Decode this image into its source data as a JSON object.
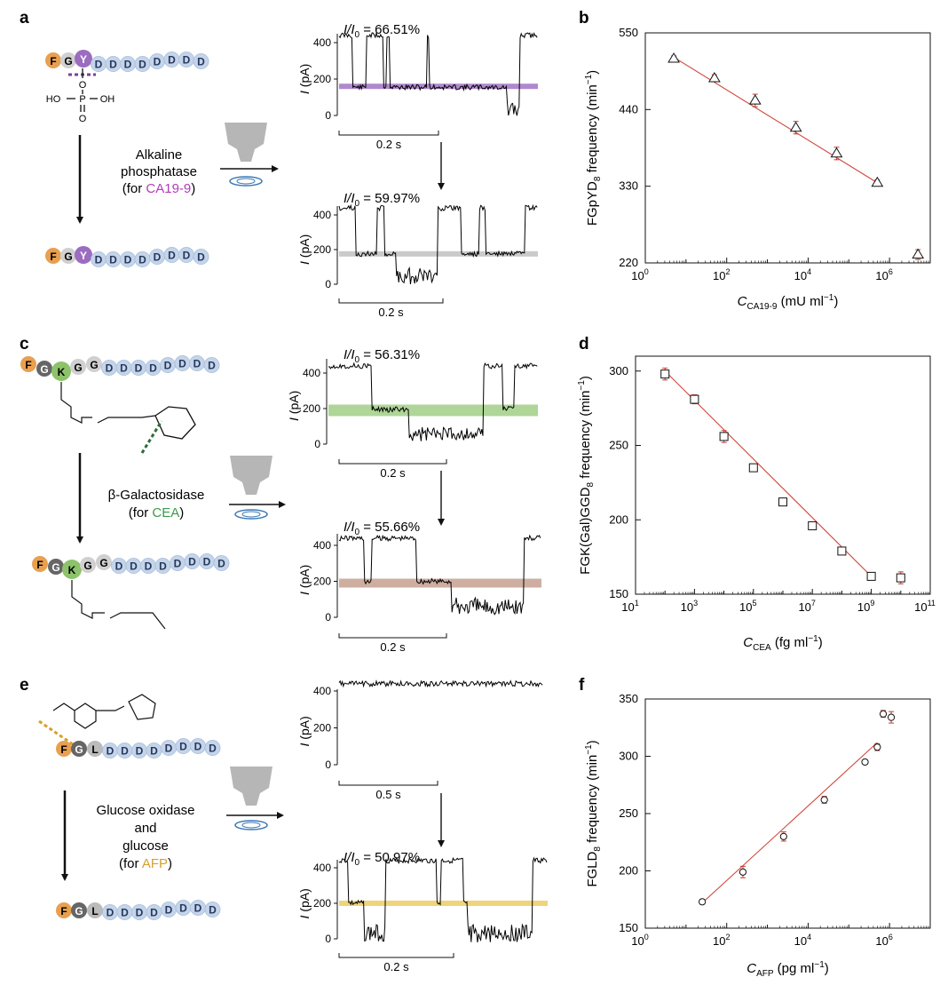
{
  "panels": {
    "a": {
      "label": "a",
      "enzyme": [
        "Alkaline",
        "phosphatase"
      ],
      "target_prefix": "(for ",
      "target": "CA19-9",
      "target_suffix": ")",
      "target_color": "#b13cb8",
      "peptide_start": [
        "F",
        "G",
        "Y"
      ],
      "peptide_end": [
        "F",
        "G",
        "Y"
      ],
      "phosphate": {
        "o": "O",
        "p": "P",
        "ho": "HO",
        "oh": "OH",
        "o2": "O"
      },
      "trace_top": {
        "ratio": "= 66.51%",
        "scale": "0.2 s",
        "band_color": "#9b6cc0"
      },
      "trace_bottom": {
        "ratio": "= 59.97%",
        "scale": "0.2 s",
        "band_color": "#bdbdbd"
      }
    },
    "c": {
      "label": "c",
      "enzyme": [
        "β-Galactosidase"
      ],
      "target_prefix": "(for ",
      "target": "CEA",
      "target_suffix": ")",
      "target_color": "#3a9a4b",
      "peptide": [
        "F",
        "G",
        "K",
        "G",
        "G"
      ],
      "trace_top": {
        "ratio": "= 56.31%",
        "scale": "0.2 s",
        "band_color": "#9bcc7e"
      },
      "trace_bottom": {
        "ratio": "= 55.66%",
        "scale": "0.2 s",
        "band_color": "#c29a8a"
      }
    },
    "e": {
      "label": "e",
      "enzyme": [
        "Glucose oxidase",
        "and",
        "glucose"
      ],
      "target_prefix": "(for ",
      "target": "AFP",
      "target_suffix": ")",
      "target_color": "#d6a12b",
      "peptide": [
        "F",
        "G",
        "L"
      ],
      "trace_top": {
        "scale": "0.5 s"
      },
      "trace_bottom": {
        "ratio": "= 50.97%",
        "scale": "0.2 s",
        "band_color": "#ecc95a"
      }
    }
  },
  "residue_d": "D",
  "ratio_symbol": "I/I",
  "ratio_sub": "0",
  "trace_axis": {
    "label": "I",
    "unit": " (pA)",
    "ticks": [
      "0",
      "200",
      "400"
    ]
  },
  "chart_data": [
    {
      "panel": "b",
      "type": "scatter",
      "xscale": "log",
      "title": "",
      "xlabel_main": "C",
      "xlabel_sub": "CA19-9",
      "xlabel_unit": " (mU ml",
      "xlabel_unit_sup": "−1",
      "xlabel_close": ")",
      "ylabel_main": "FGpYD",
      "ylabel_sub": "8",
      "ylabel_rest": " frequency (min",
      "ylabel_sup": "−1",
      "ylabel_close": ")",
      "xlim_exp": [
        0,
        7
      ],
      "ylim": [
        220,
        550
      ],
      "xticks": [
        {
          "base": "10",
          "exp": "0"
        },
        {
          "base": "10",
          "exp": "2"
        },
        {
          "base": "10",
          "exp": "4"
        },
        {
          "base": "10",
          "exp": "6"
        }
      ],
      "yticks": [
        "550",
        "440",
        "330",
        "220"
      ],
      "marker": "triangle",
      "points": [
        {
          "x": 5,
          "y": 513,
          "err": 4
        },
        {
          "x": 50,
          "y": 485,
          "err": 5
        },
        {
          "x": 500,
          "y": 453,
          "err": 9
        },
        {
          "x": 5000,
          "y": 414,
          "err": 9
        },
        {
          "x": 50000,
          "y": 377,
          "err": 9
        },
        {
          "x": 500000,
          "y": 335,
          "err": 4
        },
        {
          "x": 5000000,
          "y": 232,
          "err": 7
        }
      ],
      "fit": {
        "x0": 5,
        "y0": 515,
        "x1": 500000,
        "y1": 335
      }
    },
    {
      "panel": "d",
      "type": "scatter",
      "xscale": "log",
      "xlabel_main": "C",
      "xlabel_sub": "CEA",
      "xlabel_unit": " (fg ml",
      "xlabel_unit_sup": "−1",
      "xlabel_close": ")",
      "ylabel_main": "FGK(Gal)GGD",
      "ylabel_sub": "8",
      "ylabel_rest": " frequency (min",
      "ylabel_sup": "−1",
      "ylabel_close": ")",
      "xlim_exp": [
        1,
        11
      ],
      "ylim": [
        150,
        310
      ],
      "xticks": [
        {
          "base": "10",
          "exp": "1"
        },
        {
          "base": "10",
          "exp": "3"
        },
        {
          "base": "10",
          "exp": "5"
        },
        {
          "base": "10",
          "exp": "7"
        },
        {
          "base": "10",
          "exp": "9"
        },
        {
          "base": "10",
          "exp": "11"
        }
      ],
      "yticks": [
        "300",
        "250",
        "200",
        "150"
      ],
      "marker": "square",
      "points": [
        {
          "x": 100,
          "y": 298,
          "err": 4
        },
        {
          "x": 1000,
          "y": 281,
          "err": 3
        },
        {
          "x": 10000,
          "y": 256,
          "err": 4
        },
        {
          "x": 100000,
          "y": 235,
          "err": 2
        },
        {
          "x": 1000000,
          "y": 212,
          "err": 2
        },
        {
          "x": 10000000,
          "y": 196,
          "err": 2
        },
        {
          "x": 100000000,
          "y": 179,
          "err": 2
        },
        {
          "x": 1000000000,
          "y": 162,
          "err": 2
        },
        {
          "x": 10000000000,
          "y": 161,
          "err": 4
        }
      ],
      "fit": {
        "x0": 100,
        "y0": 300,
        "x1": 1000000000,
        "y1": 162
      }
    },
    {
      "panel": "f",
      "type": "scatter",
      "xscale": "log",
      "xlabel_main": "C",
      "xlabel_sub": "AFP",
      "xlabel_unit": " (pg ml",
      "xlabel_unit_sup": "−1",
      "xlabel_close": ")",
      "ylabel_main": "FGLD",
      "ylabel_sub": "8",
      "ylabel_rest": " frequency (min",
      "ylabel_sup": "−1",
      "ylabel_close": ")",
      "xlim_exp": [
        0,
        7
      ],
      "ylim": [
        150,
        350
      ],
      "xticks": [
        {
          "base": "10",
          "exp": "0"
        },
        {
          "base": "10",
          "exp": "2"
        },
        {
          "base": "10",
          "exp": "4"
        },
        {
          "base": "10",
          "exp": "6"
        }
      ],
      "yticks": [
        "350",
        "300",
        "250",
        "200",
        "150"
      ],
      "marker": "circle",
      "points": [
        {
          "x": 25,
          "y": 173,
          "err": 2
        },
        {
          "x": 250,
          "y": 199,
          "err": 5
        },
        {
          "x": 2500,
          "y": 230,
          "err": 4
        },
        {
          "x": 25000,
          "y": 262,
          "err": 3
        },
        {
          "x": 250000,
          "y": 295,
          "err": 2
        },
        {
          "x": 500000,
          "y": 308,
          "err": 3
        },
        {
          "x": 700000,
          "y": 337,
          "err": 3
        },
        {
          "x": 1100000,
          "y": 334,
          "err": 5
        }
      ],
      "fit": {
        "x0": 25,
        "y0": 172,
        "x1": 500000,
        "y1": 312
      }
    }
  ]
}
